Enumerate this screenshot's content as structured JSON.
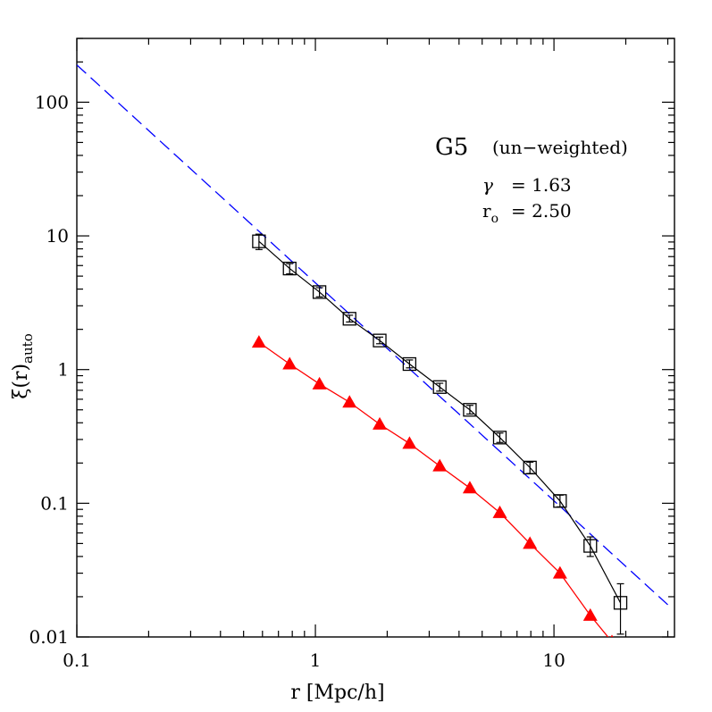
{
  "chart_data": {
    "type": "scatter",
    "xlabel": "r [Mpc/h]",
    "ylabel": "ξ(r)",
    "ylabel_sub": "auto",
    "xscale": "log",
    "yscale": "log",
    "xlim": [
      0.1,
      32
    ],
    "ylim": [
      0.01,
      300
    ],
    "xticks": [
      {
        "value": 0.1,
        "label": "0.1"
      },
      {
        "value": 1,
        "label": "1"
      },
      {
        "value": 10,
        "label": "10"
      }
    ],
    "yticks": [
      {
        "value": 0.01,
        "label": "0.01"
      },
      {
        "value": 0.1,
        "label": "0.1"
      },
      {
        "value": 1,
        "label": "1"
      },
      {
        "value": 10,
        "label": "10"
      },
      {
        "value": 100,
        "label": "100"
      }
    ],
    "grid": false,
    "legend": "none",
    "annotation": {
      "name": "G5",
      "subtitle": "(un−weighted)",
      "gamma_symbol": "γ",
      "gamma_value": "= 1.63",
      "r0_symbol": "r",
      "r0_sub": "o",
      "r0_value": "= 2.50"
    },
    "series": [
      {
        "marker": "open-square",
        "color": "#000000",
        "x": [
          0.58,
          0.78,
          1.04,
          1.39,
          1.86,
          2.48,
          3.32,
          4.44,
          5.93,
          7.93,
          10.6,
          14.2,
          19.0
        ],
        "y": [
          9.1,
          5.7,
          3.8,
          2.4,
          1.65,
          1.1,
          0.74,
          0.5,
          0.31,
          0.185,
          0.104,
          0.048,
          0.018
        ],
        "yerr_lo": [
          7.9,
          5.2,
          3.5,
          2.27,
          1.56,
          1.03,
          0.69,
          0.465,
          0.285,
          0.167,
          0.094,
          0.04,
          0.0105
        ],
        "yerr_hi": [
          10.3,
          6.2,
          4.1,
          2.55,
          1.75,
          1.18,
          0.79,
          0.54,
          0.335,
          0.203,
          0.115,
          0.056,
          0.025
        ]
      },
      {
        "marker": "filled-triangle",
        "color": "#ff0000",
        "x": [
          0.58,
          0.78,
          1.04,
          1.39,
          1.86,
          2.48,
          3.32,
          4.44,
          5.93,
          7.93,
          10.6,
          14.2,
          17.5
        ],
        "y": [
          1.6,
          1.1,
          0.78,
          0.57,
          0.39,
          0.28,
          0.19,
          0.13,
          0.085,
          0.05,
          0.03,
          0.0145,
          0.0092
        ]
      },
      {
        "type": "line",
        "style": "dashed",
        "color": "#0000ff",
        "gamma": 1.63,
        "r0": 2.5,
        "x_range": [
          0.1,
          30
        ]
      }
    ]
  }
}
